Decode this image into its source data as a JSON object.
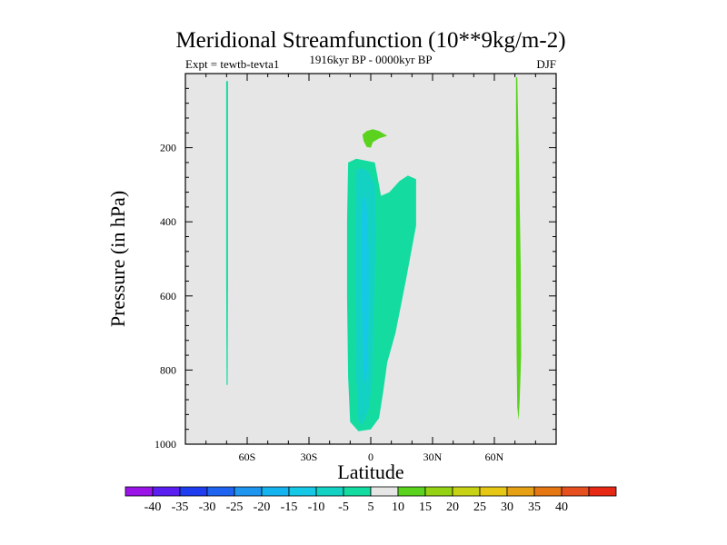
{
  "chart_data": {
    "type": "contour",
    "title": "Meridional Streamfunction (10**9kg/m-2)",
    "left_string": "Expt = tewtb-tevta1",
    "center_string": "1916kyr BP - 0000kyr BP",
    "right_string": "DJF",
    "xlabel": "Latitude",
    "ylabel": "Pressure (in hPa)",
    "xlim": [
      -90,
      90
    ],
    "ylim": [
      0,
      1000
    ],
    "x_ticks": [
      {
        "value": -60,
        "label": "60S"
      },
      {
        "value": -30,
        "label": "30S"
      },
      {
        "value": 0,
        "label": "0"
      },
      {
        "value": 30,
        "label": "30N"
      },
      {
        "value": 60,
        "label": "60N"
      }
    ],
    "y_ticks": [
      {
        "value": 200,
        "label": "200"
      },
      {
        "value": 400,
        "label": "400"
      },
      {
        "value": 600,
        "label": "600"
      },
      {
        "value": 800,
        "label": "800"
      },
      {
        "value": 1000,
        "label": "1000"
      }
    ],
    "background_fill": "#e6e6e6",
    "colorbar": {
      "levels": [
        "-40",
        "-35",
        "-30",
        "-25",
        "-20",
        "-15",
        "-10",
        "-5",
        "5",
        "10",
        "15",
        "20",
        "25",
        "30",
        "35",
        "40"
      ],
      "colors": [
        "#9a14e8",
        "#5a1ef0",
        "#1e3cf0",
        "#1e64f0",
        "#1e96f0",
        "#14b4f0",
        "#14c8e6",
        "#14d2c3",
        "#14dca0",
        "#e6e6e6",
        "#5ad21e",
        "#96d214",
        "#c8d214",
        "#e6c814",
        "#e6a014",
        "#e67814",
        "#e6501e",
        "#e62814"
      ]
    },
    "regions": [
      {
        "name": "cell-60s-thin",
        "fill_level": "-10 to -5",
        "lat_range": [
          -70.2,
          -69.3
        ],
        "pressure_range": [
          20,
          840
        ]
      },
      {
        "name": "cell-tropical-negative-outer",
        "fill_level": "-10 to -5",
        "lat_range": [
          -11,
          22
        ],
        "pressure_range": [
          240,
          965
        ]
      },
      {
        "name": "cell-tropical-negative-mid",
        "fill_level": "-15 to -10",
        "lat_range": [
          -7,
          2
        ],
        "pressure_range": [
          260,
          950
        ]
      },
      {
        "name": "cell-tropical-negative-inner",
        "fill_level": "-20 to -15",
        "lat_range": [
          -4,
          -1
        ],
        "pressure_range": [
          340,
          840
        ]
      },
      {
        "name": "cell-upper-positive",
        "fill_level": "5 to 10",
        "lat_range": [
          -4,
          8
        ],
        "pressure_range": [
          155,
          200
        ]
      },
      {
        "name": "cell-70n-positive",
        "fill_level": "5 to 10",
        "lat_range": [
          70.5,
          73
        ],
        "pressure_range": [
          10,
          935
        ]
      }
    ]
  }
}
